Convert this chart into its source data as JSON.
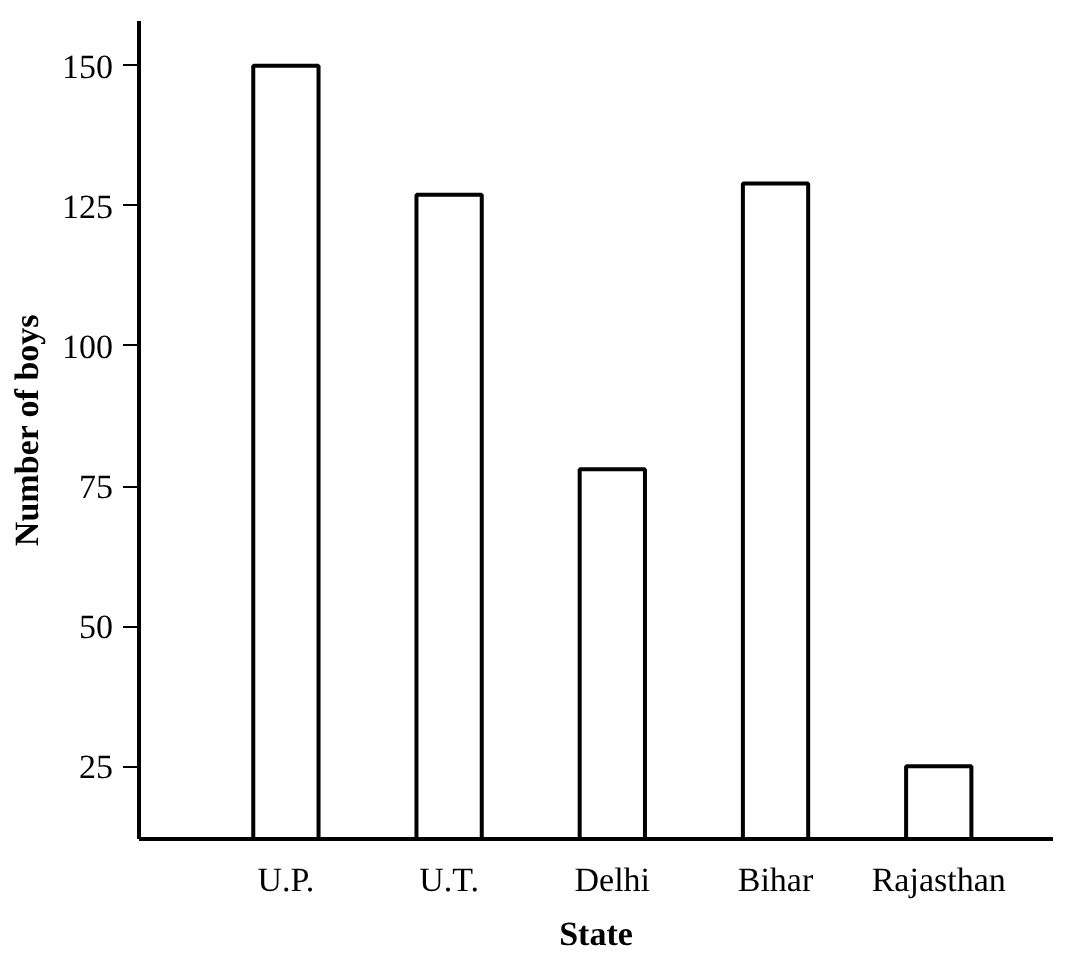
{
  "chart_data": {
    "type": "bar",
    "xlabel": "State",
    "ylabel": "Number of boys",
    "categories": [
      "U.P.",
      "U.T.",
      "Delhi",
      "Bihar",
      "Rajasthan"
    ],
    "values": [
      150,
      127,
      78,
      129,
      25
    ],
    "color": "#ffffff",
    "ylim": [
      12,
      158
    ],
    "yticks": [
      25,
      50,
      75,
      100,
      125,
      150
    ],
    "grid": false
  }
}
